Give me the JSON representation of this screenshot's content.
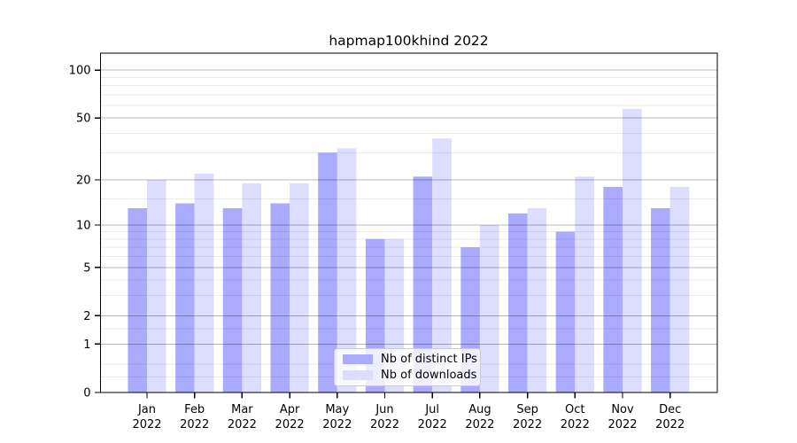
{
  "chart_data": {
    "type": "bar",
    "title": "hapmap100khind 2022",
    "categories": [
      "Jan",
      "Feb",
      "Mar",
      "Apr",
      "May",
      "Jun",
      "Jul",
      "Aug",
      "Sep",
      "Oct",
      "Nov",
      "Dec"
    ],
    "category_year": "2022",
    "series": [
      {
        "name": "Nb of distinct IPs",
        "color": "#aaaaff",
        "values": [
          13,
          14,
          13,
          14,
          30,
          8,
          21,
          7,
          12,
          9,
          18,
          13
        ]
      },
      {
        "name": "Nb of downloads",
        "color": "#ddddff",
        "values": [
          20,
          22,
          19,
          19,
          32,
          8,
          37,
          10,
          13,
          21,
          57,
          18
        ]
      }
    ],
    "xlabel": "",
    "ylabel": "",
    "yscale": "log10(1+y)",
    "ylim": [
      0,
      128
    ],
    "y_ticks": [
      0,
      1,
      2,
      5,
      10,
      20,
      50,
      100
    ],
    "minor_gridlines": [
      0.25,
      0.5,
      1.5,
      3,
      4,
      6,
      7,
      8,
      9,
      15,
      30,
      40,
      60,
      70,
      80,
      90
    ],
    "grid": true,
    "legend_position": "lower center"
  }
}
